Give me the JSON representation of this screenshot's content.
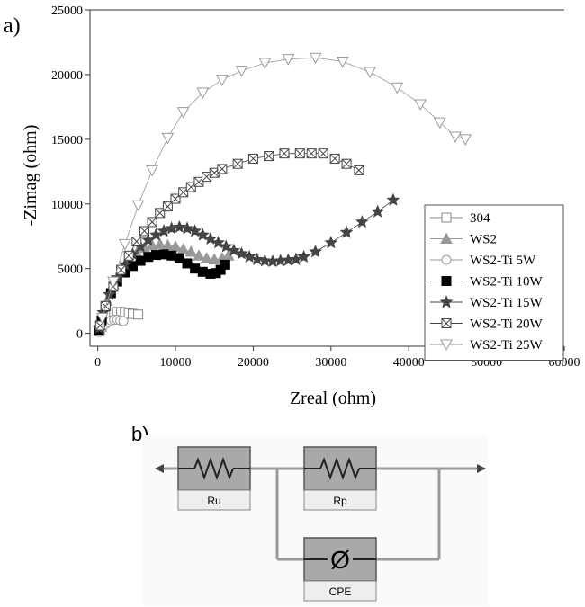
{
  "panel_a_label": "a)",
  "panel_b_label": "b)",
  "chart_data": {
    "type": "scatter",
    "xlabel": "Zreal (ohm)",
    "ylabel": "-Zimag (ohm)",
    "xlim": [
      -1000,
      60000
    ],
    "ylim": [
      -1000,
      25000
    ],
    "xticks": [
      0,
      10000,
      20000,
      30000,
      40000,
      50000,
      60000
    ],
    "yticks": [
      0,
      5000,
      10000,
      15000,
      20000,
      25000
    ],
    "grid": false,
    "legend_position": "lower-right",
    "series": [
      {
        "name": "304",
        "marker": "square-open",
        "color": "#888888",
        "x": [
          200,
          500,
          900,
          1300,
          1700,
          2100,
          2500,
          3000,
          3500,
          4000,
          4500,
          5200
        ],
        "y": [
          150,
          500,
          900,
          1200,
          1450,
          1600,
          1650,
          1650,
          1600,
          1550,
          1500,
          1450
        ]
      },
      {
        "name": "WS2",
        "marker": "triangle-up-filled",
        "color": "#999999",
        "x": [
          200,
          600,
          1200,
          2000,
          3000,
          4000,
          5000,
          6000,
          7000,
          8000,
          9000,
          10000,
          11000,
          12000,
          13000,
          14000,
          15000,
          16000,
          16800
        ],
        "y": [
          300,
          1200,
          2500,
          3800,
          4900,
          5600,
          6200,
          6600,
          6800,
          6900,
          6800,
          6700,
          6500,
          6300,
          6000,
          5800,
          5700,
          5800,
          6000
        ]
      },
      {
        "name": "WS2-Ti 5W",
        "marker": "circle-open",
        "color": "#999999",
        "x": [
          200,
          500,
          900,
          1300,
          1700,
          2100,
          2500,
          2900,
          3300
        ],
        "y": [
          100,
          350,
          650,
          850,
          1000,
          1050,
          1050,
          1000,
          950
        ]
      },
      {
        "name": "WS2-Ti 10W",
        "marker": "square-filled",
        "color": "#000000",
        "x": [
          150,
          500,
          1000,
          1700,
          2500,
          3500,
          4500,
          5500,
          6500,
          7500,
          8500,
          9500,
          10500,
          11500,
          12500,
          13500,
          14500,
          15200,
          15800,
          16400
        ],
        "y": [
          250,
          1000,
          2100,
          3100,
          4000,
          4700,
          5200,
          5600,
          5900,
          6050,
          6100,
          6000,
          5800,
          5400,
          5000,
          4750,
          4600,
          4650,
          4900,
          5300
        ]
      },
      {
        "name": "WS2-Ti 15W",
        "marker": "star-filled",
        "color": "#444444",
        "x": [
          200,
          700,
          1500,
          2500,
          3500,
          4500,
          5500,
          6500,
          7500,
          8500,
          9500,
          10500,
          11500,
          12500,
          13500,
          14500,
          15500,
          16500,
          17500,
          18500,
          19500,
          20500,
          21500,
          22500,
          23500,
          24500,
          25500,
          26500,
          28000,
          30000,
          32000,
          34000,
          36000,
          38000
        ],
        "y": [
          400,
          1600,
          3000,
          4300,
          5300,
          6100,
          6700,
          7200,
          7600,
          7900,
          8100,
          8200,
          8100,
          7900,
          7600,
          7300,
          7000,
          6700,
          6400,
          6150,
          5900,
          5700,
          5600,
          5550,
          5600,
          5650,
          5700,
          5900,
          6300,
          7000,
          7800,
          8600,
          9400,
          10300
        ]
      },
      {
        "name": "WS2-Ti 20W",
        "marker": "square-crossed",
        "color": "#444444",
        "x": [
          300,
          1000,
          2000,
          3000,
          4000,
          5000,
          6000,
          7000,
          8000,
          9000,
          10000,
          11000,
          12000,
          13000,
          14000,
          15000,
          16000,
          18000,
          20000,
          22000,
          24000,
          26000,
          27500,
          29000,
          30500,
          32000,
          33600
        ],
        "y": [
          600,
          2100,
          3600,
          4900,
          6000,
          7100,
          7900,
          8600,
          9300,
          9800,
          10400,
          10900,
          11300,
          11700,
          12100,
          12400,
          12700,
          13100,
          13500,
          13700,
          13900,
          13900,
          13900,
          13900,
          13500,
          13100,
          12600
        ]
      },
      {
        "name": "WS2-Ti 25W",
        "marker": "triangle-down-open",
        "color": "#999999",
        "x": [
          600,
          2000,
          3500,
          5200,
          7000,
          9000,
          11000,
          13500,
          16000,
          18500,
          21500,
          24500,
          28000,
          31500,
          35000,
          38500,
          41500,
          44000,
          46000,
          47300
        ],
        "y": [
          1200,
          4000,
          6900,
          9900,
          12600,
          15100,
          17100,
          18600,
          19600,
          20300,
          20900,
          21200,
          21300,
          21000,
          20200,
          19000,
          17700,
          16300,
          15200,
          15000
        ]
      }
    ]
  },
  "circuit": {
    "components": [
      {
        "label": "Ru",
        "symbol": "resistor"
      },
      {
        "label": "Rp",
        "symbol": "resistor"
      },
      {
        "label": "CPE",
        "symbol": "Ø"
      }
    ]
  }
}
